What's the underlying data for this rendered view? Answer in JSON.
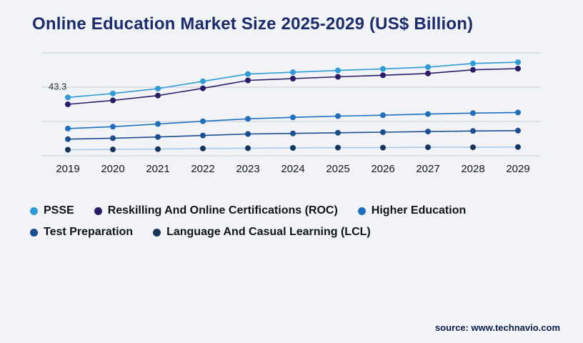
{
  "page": {
    "title": "Online Education Market Size 2025-2029 (US$ Billion)",
    "source": "source: www.technavio.com"
  },
  "chart_data": {
    "type": "line",
    "title": "Online Education Market Size 2025-2029 (US$ Billion)",
    "xlabel": "",
    "ylabel": "US$ Billion",
    "x": [
      "2019",
      "2020",
      "2021",
      "2022",
      "2023",
      "2024",
      "2025",
      "2026",
      "2027",
      "2028",
      "2029"
    ],
    "ylim": [
      24,
      58
    ],
    "grid": true,
    "legend_position": "bottom",
    "annotation": {
      "text": "43.3",
      "series_index": 0,
      "point_index": 0
    },
    "series": [
      {
        "name": "PSSE",
        "color": "#2e9bd6",
        "values": [
          43.3,
          44.6,
          46.2,
          48.6,
          51.0,
          51.6,
          52.2,
          52.7,
          53.3,
          54.5,
          54.9
        ]
      },
      {
        "name": "Reskilling And Online Certifications (ROC)",
        "color": "#2b1b67",
        "values": [
          41.0,
          42.3,
          43.9,
          46.3,
          48.9,
          49.5,
          50.1,
          50.6,
          51.2,
          52.4,
          52.8
        ]
      },
      {
        "name": "Higher Education",
        "color": "#1e6fbe",
        "values": [
          33.0,
          33.6,
          34.5,
          35.4,
          36.2,
          36.7,
          37.1,
          37.4,
          37.8,
          38.1,
          38.3
        ]
      },
      {
        "name": "Test Preparation",
        "color": "#1b4e8f",
        "values": [
          29.5,
          29.8,
          30.2,
          30.7,
          31.2,
          31.4,
          31.6,
          31.8,
          32.0,
          32.2,
          32.3
        ]
      },
      {
        "name": "Language And Casual Learning (LCL)",
        "color": "#14365c",
        "line_color": "#aacbe8",
        "values": [
          26.0,
          26.1,
          26.2,
          26.4,
          26.5,
          26.6,
          26.7,
          26.7,
          26.8,
          26.8,
          26.9
        ]
      }
    ]
  }
}
